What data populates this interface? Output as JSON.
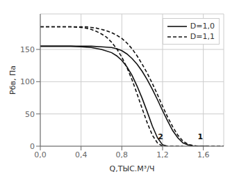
{
  "chart_data": {
    "type": "line",
    "xlabel": "Q,ТЫС.М³/Ч",
    "ylabel": "Pбв, Па",
    "xlim": [
      0.0,
      1.8
    ],
    "ylim": [
      0,
      205
    ],
    "xticks": [
      {
        "value": 0.0,
        "label": "0,0"
      },
      {
        "value": 0.4,
        "label": "0,4"
      },
      {
        "value": 0.8,
        "label": "0,8"
      },
      {
        "value": 1.2,
        "label": "1,2"
      },
      {
        "value": 1.6,
        "label": "1,6"
      }
    ],
    "yticks": [
      0,
      50,
      100,
      150
    ],
    "grid": true,
    "legend": "upper right",
    "series": [
      {
        "name": "D=1,0",
        "color": "#111111",
        "line_style": "solid",
        "x": [
          0.0,
          0.1,
          0.2,
          0.3,
          0.4,
          0.5,
          0.6,
          0.7,
          0.75,
          0.8,
          0.85,
          0.9,
          0.95,
          1.0,
          1.05,
          1.1,
          1.15,
          1.2,
          1.25,
          1.3,
          1.35,
          1.4,
          1.45,
          1.5,
          1.55,
          1.6,
          1.65
        ],
        "values": [
          155,
          155,
          155,
          155,
          155,
          155,
          154,
          153,
          151,
          148,
          143,
          136,
          127,
          116,
          103,
          88,
          72,
          55,
          39,
          24,
          13,
          5,
          2,
          0,
          0,
          0,
          0
        ]
      },
      {
        "name": "D=1,0",
        "color": "#111111",
        "line_style": "solid",
        "x": [
          0.0,
          0.1,
          0.2,
          0.3,
          0.4,
          0.5,
          0.6,
          0.7,
          0.75,
          0.8,
          0.85,
          0.9,
          0.95,
          1.0,
          1.05,
          1.1,
          1.15,
          1.2,
          1.25
        ],
        "values": [
          155,
          155,
          155,
          155,
          154,
          153,
          150,
          145,
          140,
          133,
          123,
          110,
          93,
          74,
          53,
          31,
          13,
          2,
          0
        ]
      },
      {
        "name": "D=1,1",
        "color": "#111111",
        "line_style": "dashed",
        "x": [
          0.0,
          0.1,
          0.2,
          0.3,
          0.4,
          0.45,
          0.5,
          0.55,
          0.6,
          0.65,
          0.7,
          0.75,
          0.8,
          0.85,
          0.9,
          0.95,
          1.0,
          1.05,
          1.1,
          1.15,
          1.2,
          1.25,
          1.3,
          1.35,
          1.4,
          1.45,
          1.5,
          1.55,
          1.6,
          1.65,
          1.7,
          1.75,
          1.8
        ],
        "values": [
          185,
          185,
          185,
          185,
          185,
          185,
          184,
          183,
          181,
          179,
          176,
          172,
          167,
          160,
          151,
          140,
          127,
          113,
          97,
          80,
          62,
          45,
          30,
          17,
          8,
          3,
          1,
          0,
          0,
          0,
          0,
          0,
          0
        ]
      },
      {
        "name": "D=1,1",
        "color": "#111111",
        "line_style": "dashed",
        "x": [
          0.0,
          0.1,
          0.2,
          0.3,
          0.4,
          0.45,
          0.5,
          0.55,
          0.6,
          0.65,
          0.7,
          0.75,
          0.8,
          0.85,
          0.9,
          0.95,
          1.0,
          1.05,
          1.1,
          1.15,
          1.2,
          1.25,
          1.3,
          1.35,
          1.4
        ],
        "values": [
          185,
          185,
          185,
          185,
          184,
          183,
          181,
          178,
          174,
          169,
          161,
          151,
          138,
          122,
          103,
          81,
          58,
          36,
          17,
          5,
          0,
          0,
          0,
          0,
          0
        ]
      }
    ],
    "annotations": [
      {
        "text": "1",
        "x": 1.57,
        "y": 5,
        "color": "#111111"
      },
      {
        "text": "2",
        "x": 1.18,
        "y": 5,
        "color": "#111111"
      }
    ]
  }
}
